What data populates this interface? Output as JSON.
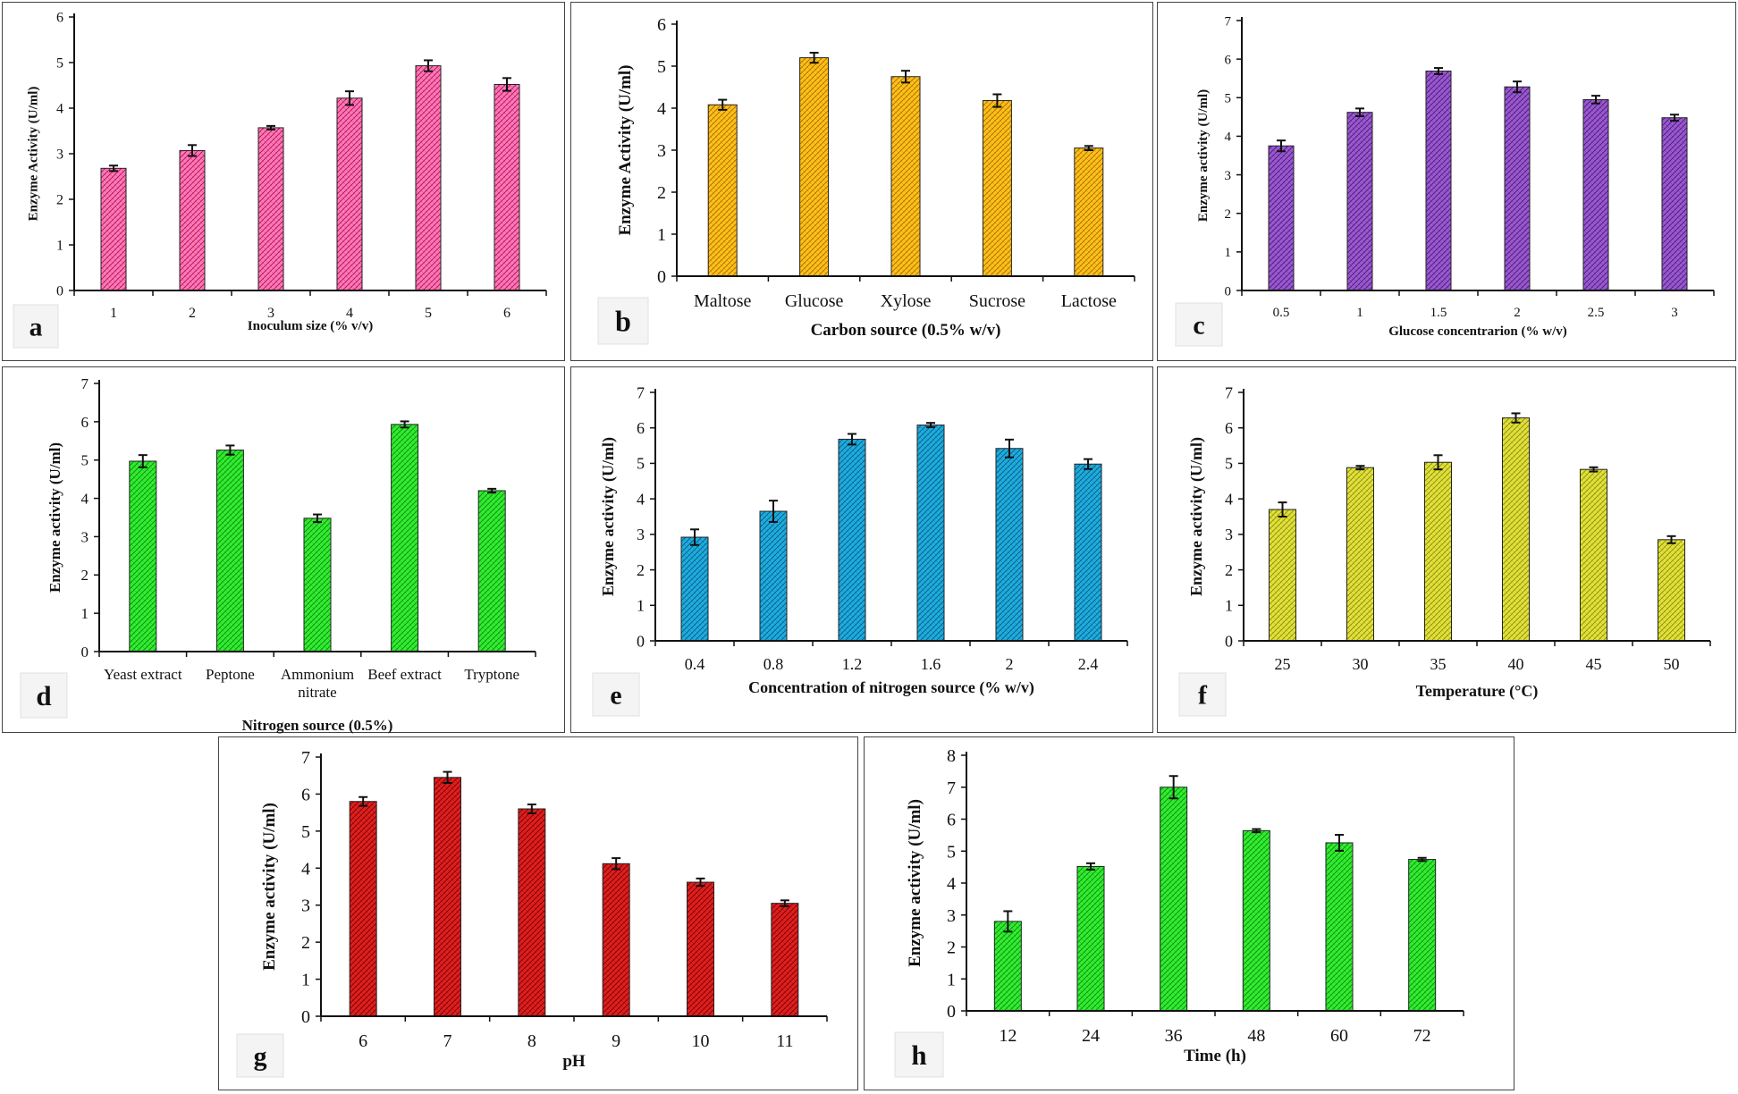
{
  "chart_data": [
    {
      "type": "bar",
      "panel_letter": "a",
      "ylabel": "Enzyme Activity (U/ml)",
      "xlabel": "Inoculum size (% v/v)",
      "categories": [
        "1",
        "2",
        "3",
        "4",
        "5",
        "6"
      ],
      "values": [
        2.68,
        3.07,
        3.57,
        4.22,
        4.93,
        4.52
      ],
      "errors": [
        0.06,
        0.12,
        0.04,
        0.15,
        0.12,
        0.14
      ],
      "ylim": [
        0,
        6
      ],
      "yticks": [
        "0",
        "1",
        "2",
        "3",
        "4",
        "5",
        "6"
      ],
      "bar_color": "#ff7ab6",
      "pattern_color": "#b0105a"
    },
    {
      "type": "bar",
      "panel_letter": "b",
      "ylabel": "Enzyme Activity (U/ml)",
      "xlabel": "Carbon source (0.5% w/v)",
      "categories": [
        "Maltose",
        "Glucose",
        "Xylose",
        "Sucrose",
        "Lactose"
      ],
      "values": [
        4.08,
        5.2,
        4.75,
        4.18,
        3.05
      ],
      "errors": [
        0.12,
        0.12,
        0.14,
        0.15,
        0.05
      ],
      "ylim": [
        0,
        6
      ],
      "yticks": [
        "0",
        "1",
        "2",
        "3",
        "4",
        "5",
        "6"
      ],
      "bar_color": "#ffc21a",
      "pattern_color": "#a86a00"
    },
    {
      "type": "bar",
      "panel_letter": "c",
      "ylabel": "Enzyme activity (U/ml)",
      "xlabel": "Glucose concentrarion (% w/v)",
      "categories": [
        "0.5",
        "1",
        "1.5",
        "2",
        "2.5",
        "3"
      ],
      "values": [
        3.75,
        4.62,
        5.69,
        5.28,
        4.95,
        4.48
      ],
      "errors": [
        0.14,
        0.1,
        0.08,
        0.14,
        0.1,
        0.08
      ],
      "ylim": [
        0,
        7
      ],
      "yticks": [
        "0",
        "1",
        "2",
        "3",
        "4",
        "5",
        "6",
        "7"
      ],
      "bar_color": "#9b59d0",
      "pattern_color": "#4a1a7a"
    },
    {
      "type": "bar",
      "panel_letter": "d",
      "ylabel": "Enzyme  activity  (U/ml)",
      "xlabel": "Nitrogen source (0.5%)",
      "categories": [
        "Yeast extract",
        "Peptone",
        "Ammonium nitrate",
        "Beef extract",
        "Tryptone"
      ],
      "category_lines": [
        [
          "Yeast extract"
        ],
        [
          "Peptone"
        ],
        [
          "Ammonium",
          "nitrate"
        ],
        [
          "Beef extract"
        ],
        [
          "Tryptone"
        ]
      ],
      "values": [
        4.97,
        5.26,
        3.48,
        5.93,
        4.2
      ],
      "errors": [
        0.16,
        0.12,
        0.1,
        0.08,
        0.05
      ],
      "ylim": [
        0,
        7
      ],
      "yticks": [
        "0",
        "1",
        "2",
        "3",
        "4",
        "5",
        "6",
        "7"
      ],
      "bar_color": "#33ee33",
      "pattern_color": "#0a8a0a"
    },
    {
      "type": "bar",
      "panel_letter": "e",
      "ylabel": "Enzyme activity (U/ml)",
      "xlabel": "Concentration of nitrogen source (% w/v)",
      "categories": [
        "0.4",
        "0.8",
        "1.2",
        "1.6",
        "2",
        "2.4"
      ],
      "values": [
        2.92,
        3.65,
        5.68,
        6.08,
        5.42,
        4.98
      ],
      "errors": [
        0.22,
        0.3,
        0.15,
        0.06,
        0.25,
        0.14
      ],
      "ylim": [
        0,
        7
      ],
      "yticks": [
        "0",
        "1",
        "2",
        "3",
        "4",
        "5",
        "6",
        "7"
      ],
      "bar_color": "#1eaee0",
      "pattern_color": "#0a5a80"
    },
    {
      "type": "bar",
      "panel_letter": "f",
      "ylabel": "Enzyme  activity  (U/ml)",
      "xlabel": "Temperature (°C)",
      "categories": [
        "25",
        "30",
        "35",
        "40",
        "45",
        "50"
      ],
      "values": [
        3.7,
        4.88,
        5.03,
        6.28,
        4.83,
        2.85
      ],
      "errors": [
        0.2,
        0.05,
        0.2,
        0.13,
        0.06,
        0.1
      ],
      "ylim": [
        0,
        7
      ],
      "yticks": [
        "0",
        "1",
        "2",
        "3",
        "4",
        "5",
        "6",
        "7"
      ],
      "bar_color": "#e2e23a",
      "pattern_color": "#8a8a10"
    },
    {
      "type": "bar",
      "panel_letter": "g",
      "ylabel": "Enzyme activity (U/ml)",
      "xlabel": "pH",
      "categories": [
        "6",
        "7",
        "8",
        "9",
        "10",
        "11"
      ],
      "values": [
        5.8,
        6.45,
        5.6,
        4.12,
        3.62,
        3.05
      ],
      "errors": [
        0.12,
        0.15,
        0.12,
        0.15,
        0.1,
        0.08
      ],
      "ylim": [
        0,
        7
      ],
      "yticks": [
        "0",
        "1",
        "2",
        "3",
        "4",
        "5",
        "6",
        "7"
      ],
      "bar_color": "#e02020",
      "pattern_color": "#7a0000"
    },
    {
      "type": "bar",
      "panel_letter": "h",
      "ylabel": "Enzyme  activity  (U/ml)",
      "xlabel": "Time (h)",
      "categories": [
        "12",
        "24",
        "36",
        "48",
        "60",
        "72"
      ],
      "values": [
        2.8,
        4.52,
        7.0,
        5.64,
        5.26,
        4.74
      ],
      "errors": [
        0.32,
        0.1,
        0.35,
        0.05,
        0.25,
        0.05
      ],
      "ylim": [
        0,
        8
      ],
      "yticks": [
        "0",
        "1",
        "2",
        "3",
        "4",
        "5",
        "6",
        "7",
        "8"
      ],
      "bar_color": "#33ee33",
      "pattern_color": "#0a8a0a"
    }
  ]
}
